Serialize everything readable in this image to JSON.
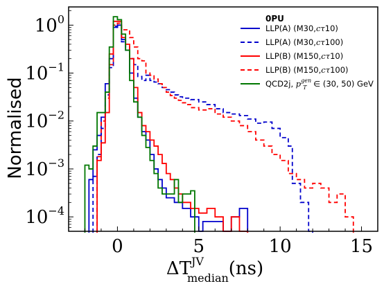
{
  "chart_data": {
    "type": "step-histogram",
    "xlabel_main": "ΔT",
    "xlabel_sup": "JV",
    "xlabel_sub": "median",
    "xlabel_unit": "(ns)",
    "ylabel": "Normalised",
    "xlim": [
      -3,
      16
    ],
    "ylim": [
      5e-05,
      2.4
    ],
    "yscale": "log",
    "grid": false,
    "legend_position": "top-right",
    "legend_title": "0PU",
    "x_ticks": [
      {
        "value": 0,
        "label": "0"
      },
      {
        "value": 5,
        "label": "5"
      },
      {
        "value": 10,
        "label": "10"
      },
      {
        "value": 15,
        "label": "15"
      }
    ],
    "y_ticks": [
      {
        "value": 0.0001,
        "label_base": "10",
        "label_exp": "−4"
      },
      {
        "value": 0.001,
        "label_base": "10",
        "label_exp": "−3"
      },
      {
        "value": 0.01,
        "label_base": "10",
        "label_exp": "−2"
      },
      {
        "value": 0.1,
        "label_base": "10",
        "label_exp": "−1"
      },
      {
        "value": 1,
        "label_base": "10",
        "label_exp": "0"
      }
    ],
    "series": [
      {
        "name": "LLP(A) (M30,cτ10)",
        "color": "#0000cc",
        "dash": "solid",
        "steps": [
          [
            -1.75,
            0.0006
          ],
          [
            -1.5,
            0.0025
          ],
          [
            -1.25,
            0.005
          ],
          [
            -1.0,
            0.012
          ],
          [
            -0.75,
            0.06
          ],
          [
            -0.5,
            0.2
          ],
          [
            -0.25,
            0.9
          ],
          [
            0.0,
            1.0
          ],
          [
            0.25,
            0.5
          ],
          [
            0.5,
            0.3
          ],
          [
            0.75,
            0.1
          ],
          [
            1.0,
            0.03
          ],
          [
            1.25,
            0.012
          ],
          [
            1.5,
            0.006
          ],
          [
            1.75,
            0.004
          ],
          [
            2.0,
            0.002
          ],
          [
            2.25,
            0.001
          ],
          [
            2.5,
            0.0006
          ],
          [
            2.75,
            0.0004
          ],
          [
            3.0,
            0.00025
          ],
          [
            3.5,
            0.0002
          ],
          [
            4.0,
            0.00015
          ],
          [
            4.5,
            0.0001
          ],
          [
            5.0,
            5e-05
          ],
          [
            5.25,
            8e-05
          ],
          [
            6.5,
            5e-05
          ],
          [
            7.0,
            0.0001
          ],
          [
            7.5,
            0.00015
          ]
        ],
        "end": 8.0
      },
      {
        "name": "LLP(A) (M30,cτ100)",
        "color": "#0000cc",
        "dash": "dashed",
        "steps": [
          [
            -1.5,
            0.0007
          ],
          [
            -1.25,
            0.002
          ],
          [
            -1.0,
            0.007
          ],
          [
            -0.75,
            0.035
          ],
          [
            -0.5,
            0.13
          ],
          [
            -0.25,
            0.95
          ],
          [
            0.0,
            0.9
          ],
          [
            0.25,
            0.45
          ],
          [
            0.5,
            0.35
          ],
          [
            0.75,
            0.2
          ],
          [
            1.0,
            0.15
          ],
          [
            1.25,
            0.085
          ],
          [
            1.5,
            0.07
          ],
          [
            1.75,
            0.09
          ],
          [
            2.0,
            0.07
          ],
          [
            2.25,
            0.065
          ],
          [
            2.5,
            0.06
          ],
          [
            2.75,
            0.05
          ],
          [
            3.0,
            0.045
          ],
          [
            3.25,
            0.04
          ],
          [
            3.5,
            0.035
          ],
          [
            3.75,
            0.032
          ],
          [
            4.0,
            0.03
          ],
          [
            4.5,
            0.028
          ],
          [
            5.0,
            0.025
          ],
          [
            5.5,
            0.022
          ],
          [
            6.0,
            0.018
          ],
          [
            6.5,
            0.015
          ],
          [
            7.0,
            0.014
          ],
          [
            7.5,
            0.013
          ],
          [
            8.0,
            0.011
          ],
          [
            8.5,
            0.009
          ],
          [
            9.0,
            0.0095
          ],
          [
            9.5,
            0.007
          ],
          [
            10.0,
            0.0045
          ],
          [
            10.5,
            0.003
          ],
          [
            10.75,
            0.0005
          ],
          [
            11.25,
            0.0002
          ],
          [
            11.75,
            5e-05
          ]
        ],
        "end": 12.0
      },
      {
        "name": "LLP(B) (M150,cτ10)",
        "color": "#ff0000",
        "dash": "solid",
        "steps": [
          [
            -1.25,
            0.0015
          ],
          [
            -1.0,
            0.0035
          ],
          [
            -0.75,
            0.015
          ],
          [
            -0.5,
            0.25
          ],
          [
            -0.25,
            1.2
          ],
          [
            0.0,
            1.2
          ],
          [
            0.25,
            0.55
          ],
          [
            0.5,
            0.4
          ],
          [
            0.75,
            0.2
          ],
          [
            1.0,
            0.05
          ],
          [
            1.25,
            0.015
          ],
          [
            1.5,
            0.008
          ],
          [
            1.75,
            0.006
          ],
          [
            2.0,
            0.004
          ],
          [
            2.25,
            0.003
          ],
          [
            2.5,
            0.002
          ],
          [
            2.75,
            0.0013
          ],
          [
            3.0,
            0.0008
          ],
          [
            3.25,
            0.0006
          ],
          [
            3.5,
            0.0004
          ],
          [
            3.75,
            0.0003
          ],
          [
            4.0,
            0.0002
          ],
          [
            4.5,
            0.00015
          ],
          [
            5.0,
            0.00012
          ],
          [
            5.5,
            0.00015
          ],
          [
            6.0,
            0.0001
          ],
          [
            6.5,
            5e-05
          ],
          [
            7.0,
            0.0001
          ],
          [
            7.5,
            5e-05
          ]
        ],
        "end": 8.0
      },
      {
        "name": "LLP(B) (M150,cτ100)",
        "color": "#ff0000",
        "dash": "dashed",
        "steps": [
          [
            -1.25,
            0.0018
          ],
          [
            -1.0,
            0.01
          ],
          [
            -0.75,
            0.03
          ],
          [
            -0.5,
            0.15
          ],
          [
            -0.25,
            1.0
          ],
          [
            0.0,
            1.1
          ],
          [
            0.25,
            0.8
          ],
          [
            0.5,
            0.8
          ],
          [
            0.75,
            0.55
          ],
          [
            1.0,
            0.35
          ],
          [
            1.25,
            0.2
          ],
          [
            1.5,
            0.18
          ],
          [
            1.75,
            0.1
          ],
          [
            2.0,
            0.09
          ],
          [
            2.25,
            0.075
          ],
          [
            2.5,
            0.06
          ],
          [
            2.75,
            0.05
          ],
          [
            3.0,
            0.04
          ],
          [
            3.25,
            0.034
          ],
          [
            3.5,
            0.03
          ],
          [
            3.75,
            0.027
          ],
          [
            4.0,
            0.024
          ],
          [
            4.25,
            0.022
          ],
          [
            4.5,
            0.019
          ],
          [
            5.0,
            0.017
          ],
          [
            5.5,
            0.018
          ],
          [
            6.0,
            0.014
          ],
          [
            6.5,
            0.012
          ],
          [
            7.0,
            0.01
          ],
          [
            7.5,
            0.008
          ],
          [
            8.0,
            0.006
          ],
          [
            8.5,
            0.004
          ],
          [
            9.0,
            0.003
          ],
          [
            9.5,
            0.002
          ],
          [
            10.0,
            0.0015
          ],
          [
            10.5,
            0.0008
          ],
          [
            11.0,
            0.0006
          ],
          [
            11.5,
            0.0004
          ],
          [
            12.0,
            0.0005
          ],
          [
            12.5,
            0.0004
          ],
          [
            13.0,
            0.0002
          ],
          [
            13.5,
            0.0003
          ],
          [
            14.0,
            0.0001
          ]
        ],
        "end": 14.5
      },
      {
        "name": "QCD2j, p_T^gen ∈ (30, 50) GeV",
        "color": "#007700",
        "dash": "solid",
        "steps": [
          [
            -2.0,
            0.0012
          ],
          [
            -1.75,
            0.001
          ],
          [
            -1.5,
            0.003
          ],
          [
            -1.25,
            0.015
          ],
          [
            -1.0,
            0.015
          ],
          [
            -0.75,
            0.04
          ],
          [
            -0.5,
            0.35
          ],
          [
            -0.25,
            1.5
          ],
          [
            0.0,
            1.3
          ],
          [
            0.25,
            0.65
          ],
          [
            0.5,
            0.3
          ],
          [
            0.75,
            0.07
          ],
          [
            1.0,
            0.025
          ],
          [
            1.25,
            0.012
          ],
          [
            1.5,
            0.005
          ],
          [
            1.75,
            0.0028
          ],
          [
            2.0,
            0.0015
          ],
          [
            2.25,
            0.0008
          ],
          [
            2.5,
            0.0004
          ],
          [
            2.75,
            0.0003
          ],
          [
            3.5,
            0.0006
          ],
          [
            3.75,
            0.0002
          ],
          [
            4.0,
            0.0003
          ],
          [
            4.5,
            0.00035
          ],
          [
            4.75,
            3e-05
          ]
        ],
        "end": 4.75
      }
    ],
    "legend": [
      {
        "label_pre": "LLP(A) (M30,",
        "label_math": "cτ",
        "label_post": "10)",
        "color": "#0000cc",
        "dash": "solid"
      },
      {
        "label_pre": "LLP(A) (M30,",
        "label_math": "cτ",
        "label_post": "100)",
        "color": "#0000cc",
        "dash": "dashed"
      },
      {
        "label_pre": "LLP(B) (M150,",
        "label_math": "cτ",
        "label_post": "10)",
        "color": "#ff0000",
        "dash": "solid"
      },
      {
        "label_pre": "LLP(B) (M150,",
        "label_math": "cτ",
        "label_post": "100)",
        "color": "#ff0000",
        "dash": "dashed"
      },
      {
        "label_pre": "QCD2j, ",
        "label_math": "p",
        "label_math_sup": "gen",
        "label_math_sub": "T",
        "label_post": " ∈ (30, 50) GeV",
        "color": "#007700",
        "dash": "solid"
      }
    ]
  }
}
